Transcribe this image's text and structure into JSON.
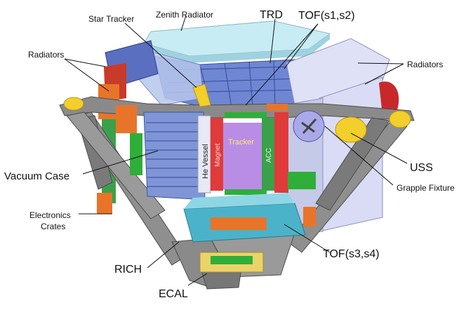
{
  "labels": {
    "zenith_radiator": "Zenith Radiator",
    "star_tracker": "Star Tracker",
    "trd": "TRD",
    "tof_upper": "TOF(s1,s2)",
    "radiators_left": "Radiators",
    "radiators_right": "Radiators",
    "vacuum_case": "Vacuum Case",
    "uss": "USS",
    "grapple_fixture": "Grapple Fixture",
    "electronics_crates": [
      "Electronics",
      "Crates"
    ],
    "rich": "RICH",
    "tof_lower": "TOF(s3,s4)",
    "ecal": "ECAL",
    "he_vessel": "He Vessel",
    "magnet": "Magnet",
    "tracker": "Tracker",
    "acc": "ACC"
  },
  "colors": {
    "truss": "#8a8a8a",
    "truss_dark": "#5e5e5e",
    "zenith_radiator": "#c8ecf4",
    "trd_blue": "#5a6fc0",
    "vacuum_case": "#7f95d6",
    "he_vessel": "#e8e8f6",
    "magnet": "#e03a3a",
    "tracker": "#b98de6",
    "acc": "#3aa14a",
    "radiator_panel": "#d9dcf4",
    "rich": "#4bb3c9",
    "ecal": "#ead46a",
    "orange": "#e8742a",
    "green": "#2fae3a",
    "yellow_fixture": "#f2cf2a"
  }
}
